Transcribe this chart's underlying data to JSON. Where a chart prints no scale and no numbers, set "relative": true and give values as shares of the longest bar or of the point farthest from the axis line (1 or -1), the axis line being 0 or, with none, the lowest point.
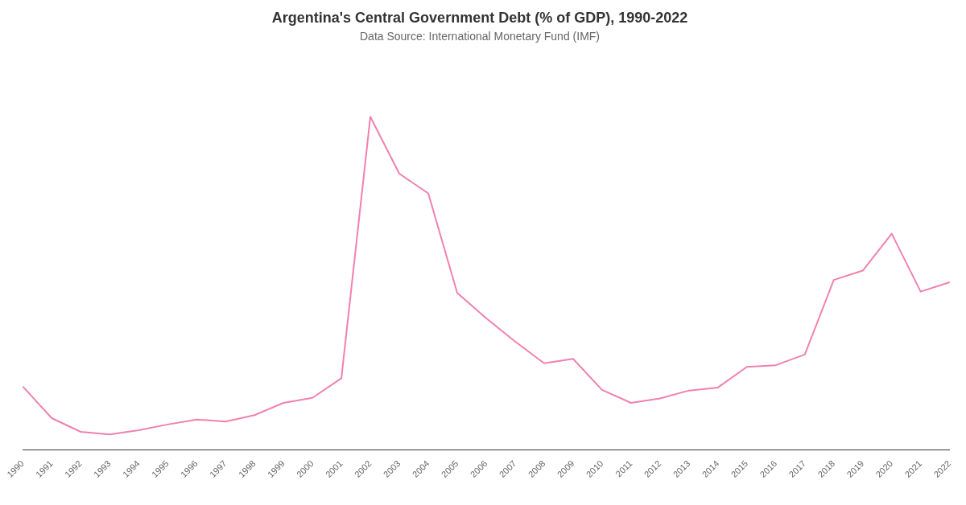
{
  "chart_data": {
    "type": "line",
    "title": "Argentina's Central Government Debt (% of GDP), 1990-2022",
    "subtitle": "Data Source: International Monetary Fund (IMF)",
    "relative": true,
    "categories": [
      "1990",
      "1991",
      "1992",
      "1993",
      "1994",
      "1995",
      "1996",
      "1997",
      "1998",
      "1999",
      "2000",
      "2001",
      "2002",
      "2003",
      "2004",
      "2005",
      "2006",
      "2007",
      "2008",
      "2009",
      "2010",
      "2011",
      "2012",
      "2013",
      "2014",
      "2015",
      "2016",
      "2017",
      "2018",
      "2019",
      "2020",
      "2021",
      "2022"
    ],
    "series": [
      {
        "color": "#f080b0",
        "values": [
          0.19,
          0.095,
          0.054,
          0.046,
          0.059,
          0.076,
          0.091,
          0.085,
          0.104,
          0.141,
          0.156,
          0.215,
          1,
          0.829,
          0.77,
          0.471,
          0.395,
          0.325,
          0.26,
          0.273,
          0.18,
          0.141,
          0.154,
          0.178,
          0.187,
          0.249,
          0.254,
          0.286,
          0.51,
          0.538,
          0.649,
          0.475,
          0.503
        ]
      }
    ],
    "grid": false,
    "legend": false,
    "marker": "none",
    "line_style": "solid"
  }
}
